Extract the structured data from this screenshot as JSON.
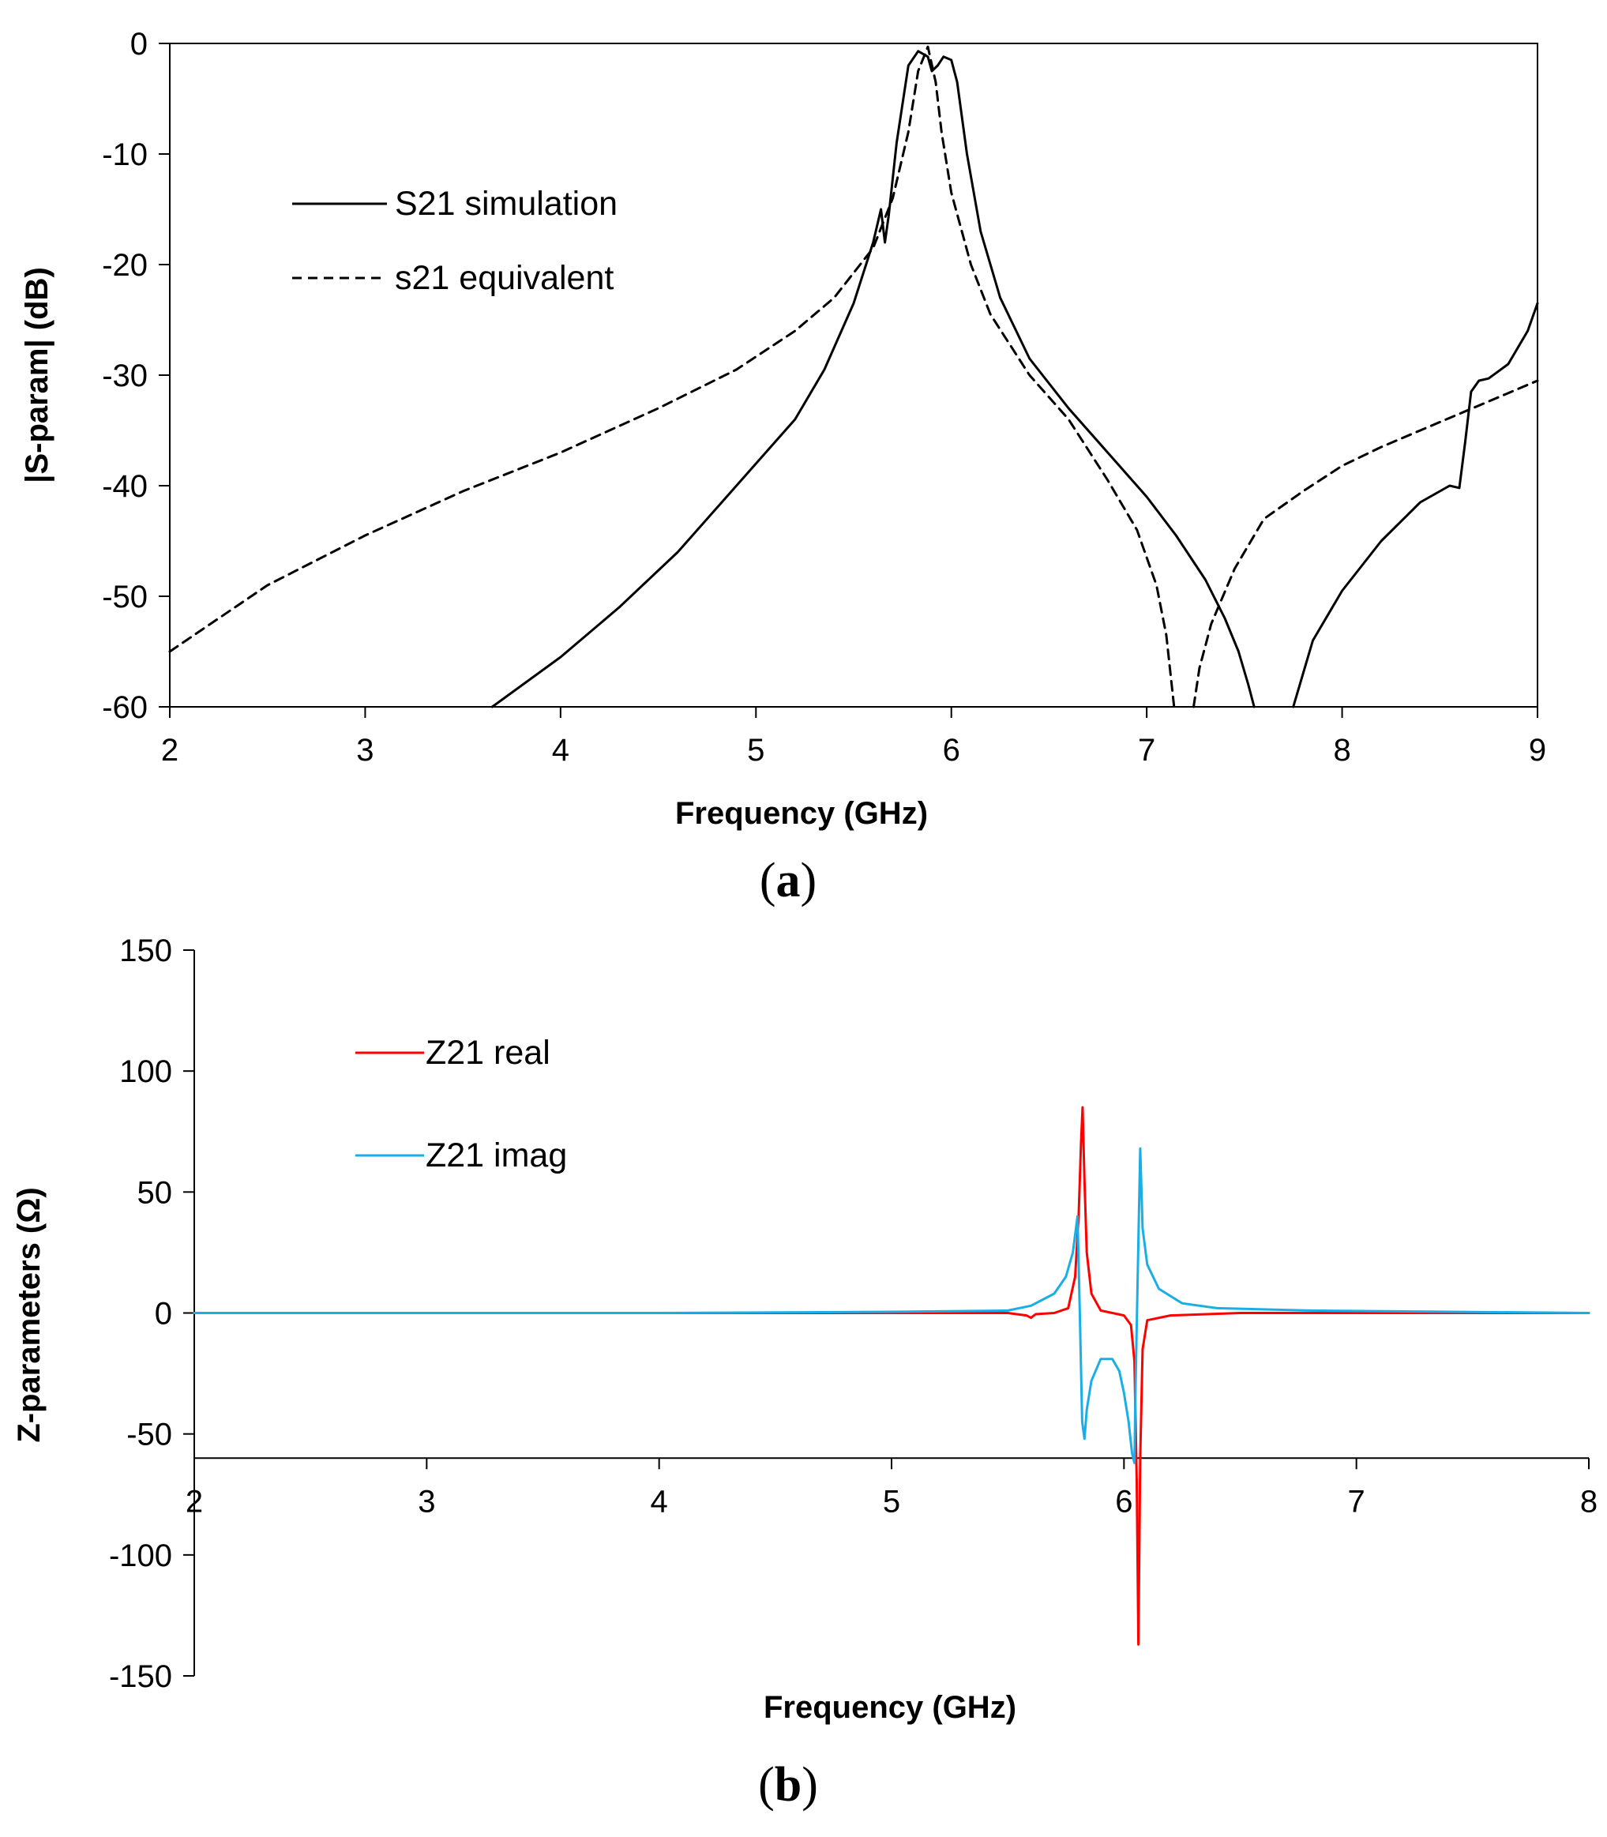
{
  "chart_data": [
    {
      "id": "a",
      "type": "line",
      "panel_label": "a",
      "xlabel": "Frequency (GHz)",
      "ylabel": "|S-param| (dB)",
      "xlim": [
        2,
        9
      ],
      "ylim": [
        -60,
        0
      ],
      "xticks": [
        2,
        3,
        4,
        5,
        6,
        7,
        8,
        9
      ],
      "yticks": [
        0,
        -10,
        -20,
        -30,
        -40,
        -50,
        -60
      ],
      "legend": "top-left",
      "grid": false,
      "series": [
        {
          "name": "S21 simulation",
          "color": "#000000",
          "style": "solid",
          "x": [
            3.65,
            4.0,
            4.3,
            4.6,
            4.85,
            5.0,
            5.2,
            5.35,
            5.5,
            5.6,
            5.64,
            5.66,
            5.68,
            5.72,
            5.78,
            5.83,
            5.88,
            5.9,
            5.93,
            5.96,
            6.0,
            6.03,
            6.08,
            6.15,
            6.25,
            6.4,
            6.6,
            6.8,
            7.0,
            7.15,
            7.3,
            7.4,
            7.47,
            7.52,
            7.55
          ],
          "y": [
            -60,
            -55.5,
            -51,
            -46,
            -41,
            -38,
            -34,
            -29.5,
            -23.5,
            -18,
            -15,
            -18,
            -15.5,
            -9,
            -2,
            -0.7,
            -1.2,
            -2.5,
            -2,
            -1.2,
            -1.5,
            -3.5,
            -10,
            -17,
            -23,
            -28.5,
            -33,
            -37,
            -41,
            -44.5,
            -48.5,
            -52,
            -55,
            -58,
            -60
          ]
        },
        {
          "name": "S21 simulation",
          "color": "#000000",
          "style": "solid",
          "x": [
            7.75,
            7.85,
            8.0,
            8.2,
            8.4,
            8.55,
            8.6,
            8.63,
            8.66,
            8.7,
            8.75,
            8.85,
            8.95,
            9.0
          ],
          "y": [
            -60,
            -54,
            -49.5,
            -45,
            -41.5,
            -40,
            -40.2,
            -36,
            -31.5,
            -30.5,
            -30.3,
            -29,
            -26,
            -23.5
          ]
        },
        {
          "name": "s21 equivalent",
          "color": "#000000",
          "style": "dashed",
          "x": [
            2.0,
            2.5,
            3.0,
            3.5,
            4.0,
            4.5,
            4.9,
            5.2,
            5.4,
            5.6,
            5.7,
            5.78,
            5.83,
            5.88,
            5.92,
            5.95,
            6.0,
            6.1,
            6.2,
            6.4,
            6.6,
            6.8,
            6.95,
            7.05,
            7.1,
            7.14
          ],
          "y": [
            -55,
            -49,
            -44.5,
            -40.5,
            -37,
            -33,
            -29.5,
            -26,
            -23,
            -18.5,
            -14,
            -8,
            -2.5,
            -0.3,
            -3.5,
            -8,
            -13.5,
            -20,
            -24.5,
            -30,
            -34,
            -39.5,
            -44,
            -49,
            -53.5,
            -60
          ]
        },
        {
          "name": "s21 equivalent",
          "color": "#000000",
          "style": "dashed",
          "x": [
            7.24,
            7.27,
            7.33,
            7.45,
            7.6,
            7.8,
            8.0,
            8.2,
            8.4,
            8.6,
            8.8,
            9.0
          ],
          "y": [
            -60,
            -56.5,
            -52.5,
            -47.5,
            -43,
            -40.5,
            -38.2,
            -36.5,
            -35,
            -33.5,
            -32,
            -30.5
          ]
        }
      ]
    },
    {
      "id": "b",
      "type": "line",
      "panel_label": "b",
      "xlabel": "Frequency (GHz)",
      "ylabel": "Z-parameters (Ω)",
      "xlim": [
        2,
        8
      ],
      "ylim": [
        -150,
        150
      ],
      "x_axis_at": -60,
      "xticks": [
        2,
        3,
        4,
        5,
        6,
        7,
        8
      ],
      "yticks": [
        150,
        100,
        50,
        0,
        -50,
        -100,
        -150
      ],
      "legend": "top-left",
      "grid": false,
      "series": [
        {
          "name": "Z21 real",
          "color": "#ff0000",
          "style": "solid",
          "x": [
            2.0,
            5.5,
            5.58,
            5.6,
            5.62,
            5.7,
            5.76,
            5.79,
            5.805,
            5.815,
            5.822,
            5.83,
            5.84,
            5.86,
            5.9,
            5.95,
            6.0,
            6.03,
            6.045,
            6.055,
            6.062,
            6.07,
            6.08,
            6.1,
            6.2,
            6.5,
            8.0
          ],
          "y": [
            0,
            0,
            -1,
            -2,
            -0.5,
            0,
            2,
            15,
            40,
            70,
            85,
            55,
            25,
            8,
            1,
            0,
            -1,
            -5,
            -20,
            -70,
            -137,
            -60,
            -15,
            -3,
            -1,
            0,
            0
          ]
        },
        {
          "name": "Z21 imag",
          "color": "#1aaee6",
          "style": "solid",
          "x": [
            2.0,
            4.0,
            5.0,
            5.5,
            5.6,
            5.7,
            5.75,
            5.78,
            5.8,
            5.81,
            5.82,
            5.83,
            5.84,
            5.86,
            5.9,
            5.95,
            5.98,
            6.0,
            6.02,
            6.035,
            6.045,
            6.05,
            6.06,
            6.07,
            6.08,
            6.1,
            6.15,
            6.25,
            6.4,
            6.8,
            8.0
          ],
          "y": [
            0,
            0,
            0.5,
            1,
            3,
            8,
            15,
            25,
            40,
            0,
            -45,
            -52,
            -40,
            -28,
            -19,
            -19,
            -24,
            -33,
            -45,
            -58,
            -62,
            -30,
            20,
            68,
            35,
            20,
            10,
            4,
            2,
            1,
            0
          ]
        }
      ]
    }
  ]
}
